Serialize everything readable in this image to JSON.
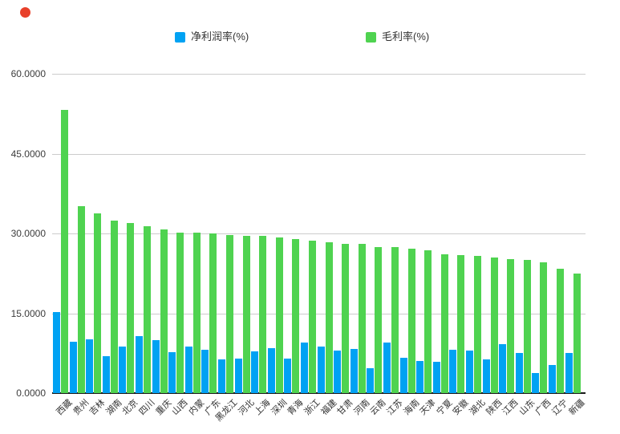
{
  "colors": {
    "net_margin_blue": "#00a2f3",
    "gross_margin_green": "#4fd350",
    "gridline": "#cccccc",
    "axis_line": "#1a1a1a",
    "red_dot": "#e8402a"
  },
  "chart_data": {
    "type": "bar",
    "title": "",
    "xlabel": "",
    "ylabel": "",
    "ylim": [
      0,
      60
    ],
    "grid": true,
    "legend_position": "top-center",
    "yticks": [
      {
        "label": "60.0000",
        "value": 60
      },
      {
        "label": "45.0000",
        "value": 45
      },
      {
        "label": "30.0000",
        "value": 30
      },
      {
        "label": "15.0000",
        "value": 15
      },
      {
        "label": "0.0000",
        "value": 0
      }
    ],
    "categories": [
      "西藏",
      "贵州",
      "吉林",
      "湖南",
      "北京",
      "四川",
      "重庆",
      "山西",
      "内蒙",
      "广东",
      "黑龙江",
      "河北",
      "上海",
      "深圳",
      "青海",
      "浙江",
      "福建",
      "甘肃",
      "河南",
      "云南",
      "江苏",
      "海南",
      "天津",
      "宁夏",
      "安徽",
      "湖北",
      "陕西",
      "江西",
      "山东",
      "广西",
      "辽宁",
      "新疆"
    ],
    "series": [
      {
        "name": "净利润率(%)",
        "color": "#00a2f3",
        "values": [
          15.3,
          9.7,
          10.1,
          7.0,
          8.8,
          10.7,
          9.9,
          7.7,
          8.8,
          8.1,
          6.3,
          6.5,
          7.8,
          8.5,
          6.5,
          9.5,
          8.7,
          8.0,
          8.3,
          4.7,
          9.5,
          6.6,
          6.1,
          5.9,
          8.2,
          8.0,
          6.4,
          9.2,
          7.6,
          3.8,
          5.3,
          7.5
        ]
      },
      {
        "name": "毛利率(%)",
        "color": "#4fd350",
        "values": [
          53.2,
          35.2,
          33.8,
          32.4,
          32.0,
          31.3,
          30.7,
          30.2,
          30.1,
          30.0,
          29.7,
          29.6,
          29.5,
          29.2,
          29.0,
          28.7,
          28.4,
          28.1,
          28.0,
          27.5,
          27.4,
          27.1,
          26.8,
          26.1,
          25.9,
          25.8,
          25.5,
          25.2,
          25.1,
          24.6,
          23.4,
          22.5
        ]
      }
    ]
  }
}
